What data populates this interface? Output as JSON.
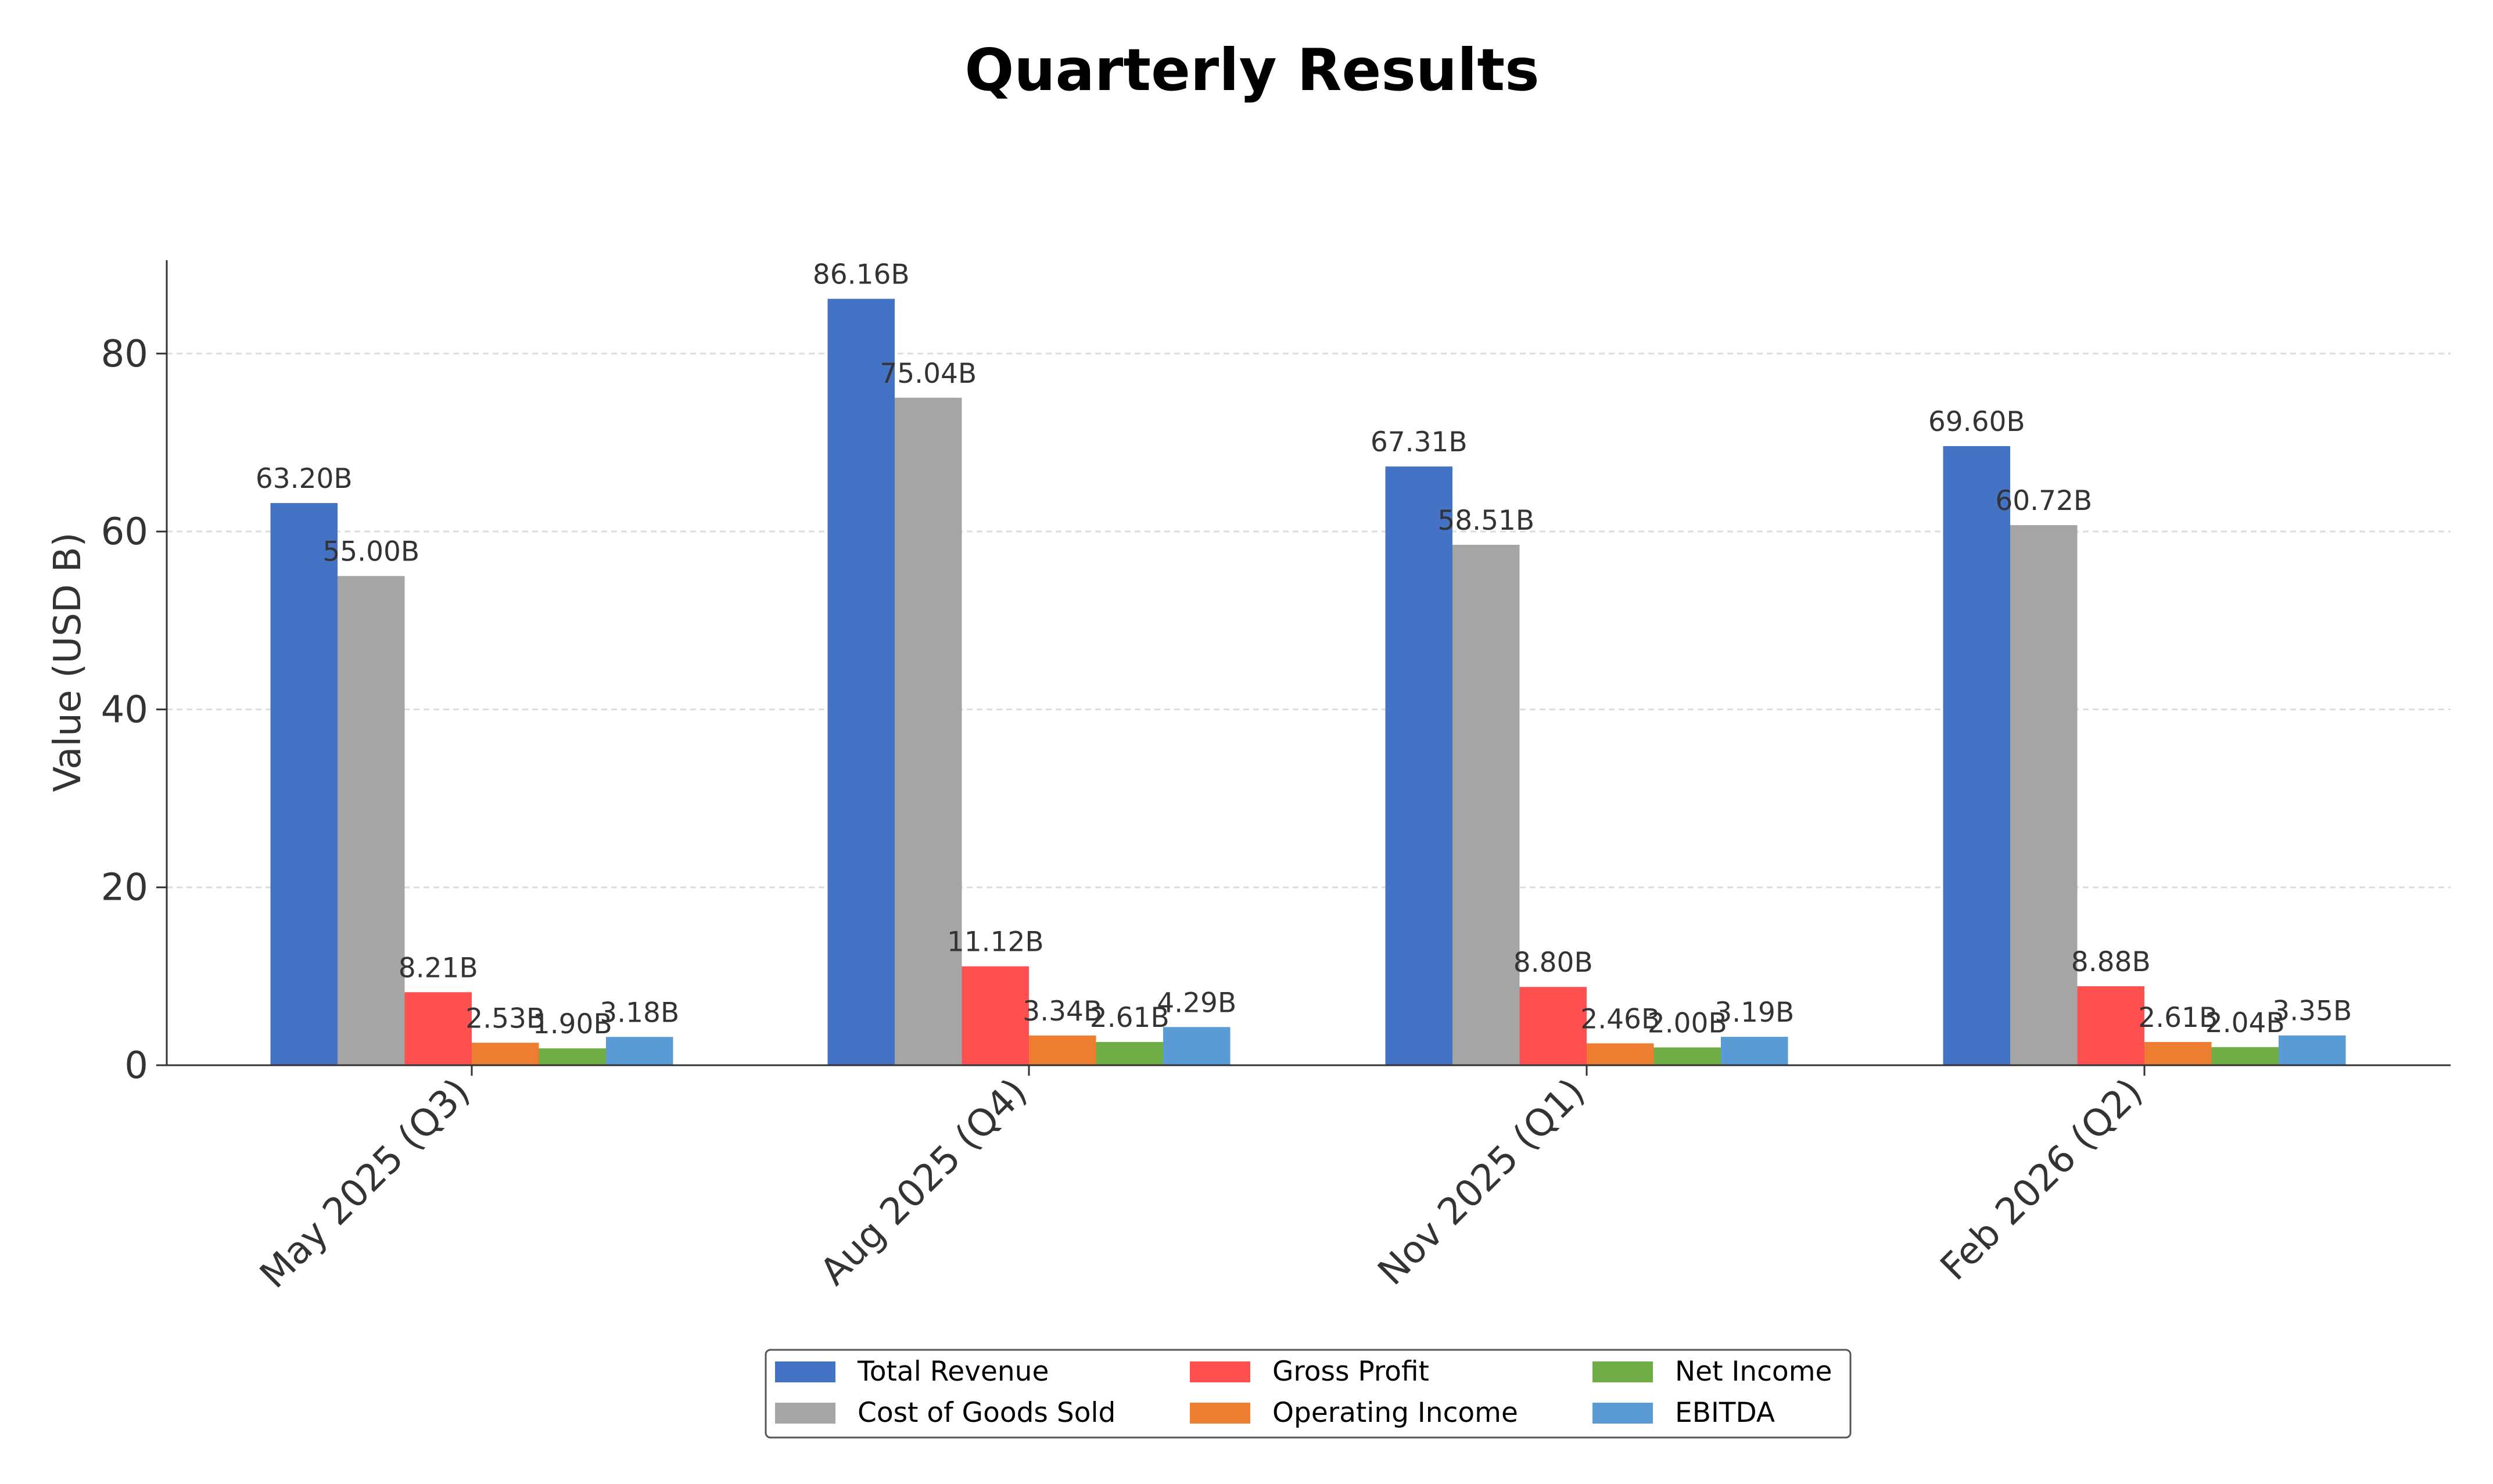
{
  "chart_data": {
    "type": "bar",
    "title": "Quarterly Results",
    "xlabel": "",
    "ylabel": "Value (USD B)",
    "ylim": [
      0,
      90.5
    ],
    "yticks": [
      0,
      20,
      40,
      60,
      80
    ],
    "grid": true,
    "legend_position": "bottom-center",
    "categories": [
      "May 2025 (Q3)",
      "Aug 2025 (Q4)",
      "Nov 2025 (Q1)",
      "Feb 2026 (Q2)"
    ],
    "series": [
      {
        "name": "Total Revenue",
        "color": "#4472C4",
        "values": [
          63.2,
          86.16,
          67.31,
          69.6
        ],
        "labels": [
          "63.20B",
          "86.16B",
          "67.31B",
          "69.60B"
        ]
      },
      {
        "name": "Cost of Goods Sold",
        "color": "#A5A5A5",
        "values": [
          55.0,
          75.04,
          58.51,
          60.72
        ],
        "labels": [
          "55.00B",
          "75.04B",
          "58.51B",
          "60.72B"
        ]
      },
      {
        "name": "Gross Profit",
        "color": "#FF5050",
        "values": [
          8.21,
          11.12,
          8.8,
          8.88
        ],
        "labels": [
          "8.21B",
          "11.12B",
          "8.80B",
          "8.88B"
        ]
      },
      {
        "name": "Operating Income",
        "color": "#ED7D31",
        "values": [
          2.53,
          3.34,
          2.46,
          2.61
        ],
        "labels": [
          "2.53B",
          "3.34B",
          "2.46B",
          "2.61B"
        ]
      },
      {
        "name": "Net Income",
        "color": "#70AD47",
        "values": [
          1.9,
          2.61,
          2.0,
          2.04
        ],
        "labels": [
          "1.90B",
          "2.61B",
          "2.00B",
          "2.04B"
        ]
      },
      {
        "name": "EBITDA",
        "color": "#5B9BD5",
        "values": [
          3.18,
          4.29,
          3.19,
          3.35
        ],
        "labels": [
          "3.18B",
          "4.29B",
          "3.19B",
          "3.35B"
        ]
      }
    ]
  }
}
